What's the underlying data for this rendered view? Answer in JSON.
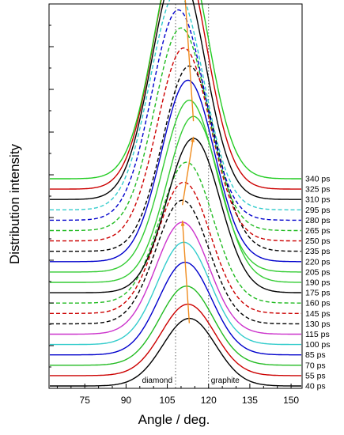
{
  "chart_data": {
    "type": "line",
    "xlabel": "Angle / deg.",
    "ylabel": "Distribution intensity",
    "xlim": [
      62,
      154
    ],
    "x_ticks": [
      75,
      90,
      105,
      120,
      135,
      150
    ],
    "grid": false,
    "reference_lines": [
      {
        "x": 108,
        "label": "diamond"
      },
      {
        "x": 120,
        "label": "graphite"
      }
    ],
    "series": [
      {
        "name": "40 ps",
        "color": "#000000",
        "dash": false,
        "peak_x": 113.0,
        "peak_height": 0.7
      },
      {
        "name": "55 ps",
        "color": "#cc0000",
        "dash": false,
        "peak_x": 112.5,
        "peak_height": 0.74
      },
      {
        "name": "70 ps",
        "color": "#22bb22",
        "dash": false,
        "peak_x": 112.0,
        "peak_height": 0.82
      },
      {
        "name": "85 ps",
        "color": "#0000cc",
        "dash": false,
        "peak_x": 111.5,
        "peak_height": 0.96
      },
      {
        "name": "100 ps",
        "color": "#33cccc",
        "dash": false,
        "peak_x": 111.0,
        "peak_height": 1.06
      },
      {
        "name": "115 ps",
        "color": "#cc33cc",
        "dash": false,
        "peak_x": 110.5,
        "peak_height": 1.16
      },
      {
        "name": "130 ps",
        "color": "#000000",
        "dash": true,
        "peak_x": 110.5,
        "peak_height": 1.28
      },
      {
        "name": "145 ps",
        "color": "#cc0000",
        "dash": true,
        "peak_x": 111.0,
        "peak_height": 1.36
      },
      {
        "name": "160 ps",
        "color": "#22bb22",
        "dash": true,
        "peak_x": 112.0,
        "peak_height": 1.46
      },
      {
        "name": "175 ps",
        "color": "#000000",
        "dash": false,
        "peak_x": 114.5,
        "peak_height": 1.6
      },
      {
        "name": "190 ps",
        "color": "#33cc33",
        "dash": false,
        "peak_x": 114.5,
        "peak_height": 1.72
      },
      {
        "name": "205 ps",
        "color": "#33cc33",
        "dash": false,
        "peak_x": 113.0,
        "peak_height": 1.78
      },
      {
        "name": "220 ps",
        "color": "#0000cc",
        "dash": false,
        "peak_x": 112.5,
        "peak_height": 1.88
      },
      {
        "name": "235 ps",
        "color": "#000000",
        "dash": true,
        "peak_x": 113.0,
        "peak_height": 1.92
      },
      {
        "name": "250 ps",
        "color": "#cc0000",
        "dash": true,
        "peak_x": 111.0,
        "peak_height": 2.0
      },
      {
        "name": "265 ps",
        "color": "#22bb22",
        "dash": true,
        "peak_x": 110.0,
        "peak_height": 2.1
      },
      {
        "name": "280 ps",
        "color": "#0000cc",
        "dash": true,
        "peak_x": 109.0,
        "peak_height": 2.18
      },
      {
        "name": "295 ps",
        "color": "#33cccc",
        "dash": true,
        "peak_x": 108.5,
        "peak_height": 2.26
      },
      {
        "name": "310 ps",
        "color": "#000000",
        "dash": false,
        "peak_x": 109.0,
        "peak_height": 2.4
      },
      {
        "name": "325 ps",
        "color": "#cc0000",
        "dash": false,
        "peak_x": 109.5,
        "peak_height": 2.5
      },
      {
        "name": "340 ps",
        "color": "#22cc22",
        "dash": false,
        "peak_x": 110.0,
        "peak_height": 2.48
      }
    ]
  }
}
